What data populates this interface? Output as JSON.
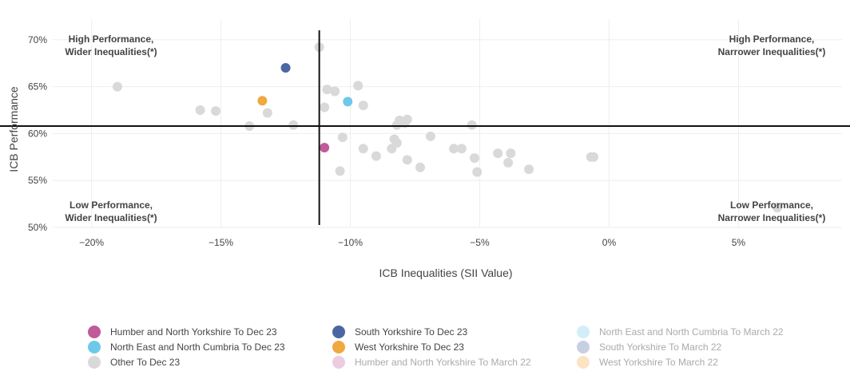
{
  "chart_data": {
    "type": "scatter",
    "xlabel": "ICB Inequalities (SII Value)",
    "ylabel": "ICB Performance",
    "xlim": [
      -21.5,
      9.0
    ],
    "ylim": [
      50,
      71
    ],
    "xticks": [
      -20,
      -15,
      -10,
      -5,
      0,
      5
    ],
    "xtick_labels": [
      "−20%",
      "−15%",
      "−10%",
      "−5%",
      "0%",
      "5%"
    ],
    "yticks": [
      50,
      55,
      60,
      65,
      70
    ],
    "ytick_labels": [
      "50%",
      "55%",
      "60%",
      "65%",
      "70%"
    ],
    "grid": true,
    "reference_lines": {
      "x": -11.2,
      "y": 60.8
    },
    "quadrant_labels": {
      "top_left": [
        "High Performance,",
        "Wider Inequalities(*)"
      ],
      "top_right": [
        "High Performance,",
        "Narrower Inequalities(*)"
      ],
      "bottom_left": [
        "Low Performance,",
        "Wider Inequalities(*)"
      ],
      "bottom_right": [
        "Low Performance,",
        "Narrower Inequalities(*)"
      ]
    },
    "series": [
      {
        "name": "Other To Dec 23",
        "color": "#d9d9d9",
        "points": [
          [
            -19.0,
            65.0
          ],
          [
            -15.8,
            62.5
          ],
          [
            -15.2,
            62.4
          ],
          [
            -13.9,
            60.8
          ],
          [
            -13.2,
            62.2
          ],
          [
            -12.2,
            60.9
          ],
          [
            -11.2,
            69.2
          ],
          [
            -11.0,
            62.8
          ],
          [
            -10.9,
            64.7
          ],
          [
            -10.6,
            64.5
          ],
          [
            -10.4,
            56.0
          ],
          [
            -10.3,
            59.6
          ],
          [
            -9.7,
            65.1
          ],
          [
            -9.5,
            63.0
          ],
          [
            -9.5,
            58.4
          ],
          [
            -9.0,
            57.6
          ],
          [
            -8.4,
            58.4
          ],
          [
            -8.3,
            59.4
          ],
          [
            -8.2,
            60.9
          ],
          [
            -8.2,
            59.0
          ],
          [
            -8.1,
            61.4
          ],
          [
            -7.9,
            61.1
          ],
          [
            -7.8,
            57.2
          ],
          [
            -7.8,
            61.5
          ],
          [
            -7.3,
            56.4
          ],
          [
            -6.9,
            59.7
          ],
          [
            -6.0,
            58.4
          ],
          [
            -5.7,
            58.4
          ],
          [
            -5.3,
            60.9
          ],
          [
            -5.2,
            57.4
          ],
          [
            -5.1,
            55.9
          ],
          [
            -4.3,
            57.9
          ],
          [
            -3.9,
            56.9
          ],
          [
            -3.8,
            57.9
          ],
          [
            -3.1,
            56.2
          ],
          [
            -0.7,
            57.5
          ],
          [
            -0.6,
            57.5
          ],
          [
            6.5,
            52.1
          ]
        ]
      },
      {
        "name": "Humber and North Yorkshire To Dec 23",
        "color": "#c05a9b",
        "points": [
          [
            -11.0,
            58.5
          ]
        ]
      },
      {
        "name": "South Yorkshire To Dec 23",
        "color": "#4a67a1",
        "points": [
          [
            -12.5,
            67.0
          ]
        ]
      },
      {
        "name": "North East and North Cumbria To Dec 23",
        "color": "#6ec8ea",
        "points": [
          [
            -10.1,
            63.4
          ]
        ]
      },
      {
        "name": "West Yorkshire To Dec 23",
        "color": "#f0a840",
        "points": [
          [
            -13.4,
            63.5
          ]
        ]
      }
    ]
  },
  "legend": [
    {
      "label": "Humber and North Yorkshire To Dec 23",
      "color": "#c05a9b",
      "faded": false
    },
    {
      "label": "North East and North Cumbria To Dec 23",
      "color": "#6ec8ea",
      "faded": false
    },
    {
      "label": "Other To Dec 23",
      "color": "#d9d9d9",
      "faded": false
    },
    {
      "label": "South Yorkshire To Dec 23",
      "color": "#4a67a1",
      "faded": false
    },
    {
      "label": "West Yorkshire To Dec 23",
      "color": "#f0a840",
      "faded": false
    },
    {
      "label": "Humber and North Yorkshire To March 22",
      "color": "#c05a9b",
      "faded": true
    },
    {
      "label": "North East and North Cumbria To March 22",
      "color": "#6ec8ea",
      "faded": true
    },
    {
      "label": "South Yorkshire To March 22",
      "color": "#4a67a1",
      "faded": true
    },
    {
      "label": "West Yorkshire To March 22",
      "color": "#f0a840",
      "faded": true
    }
  ]
}
